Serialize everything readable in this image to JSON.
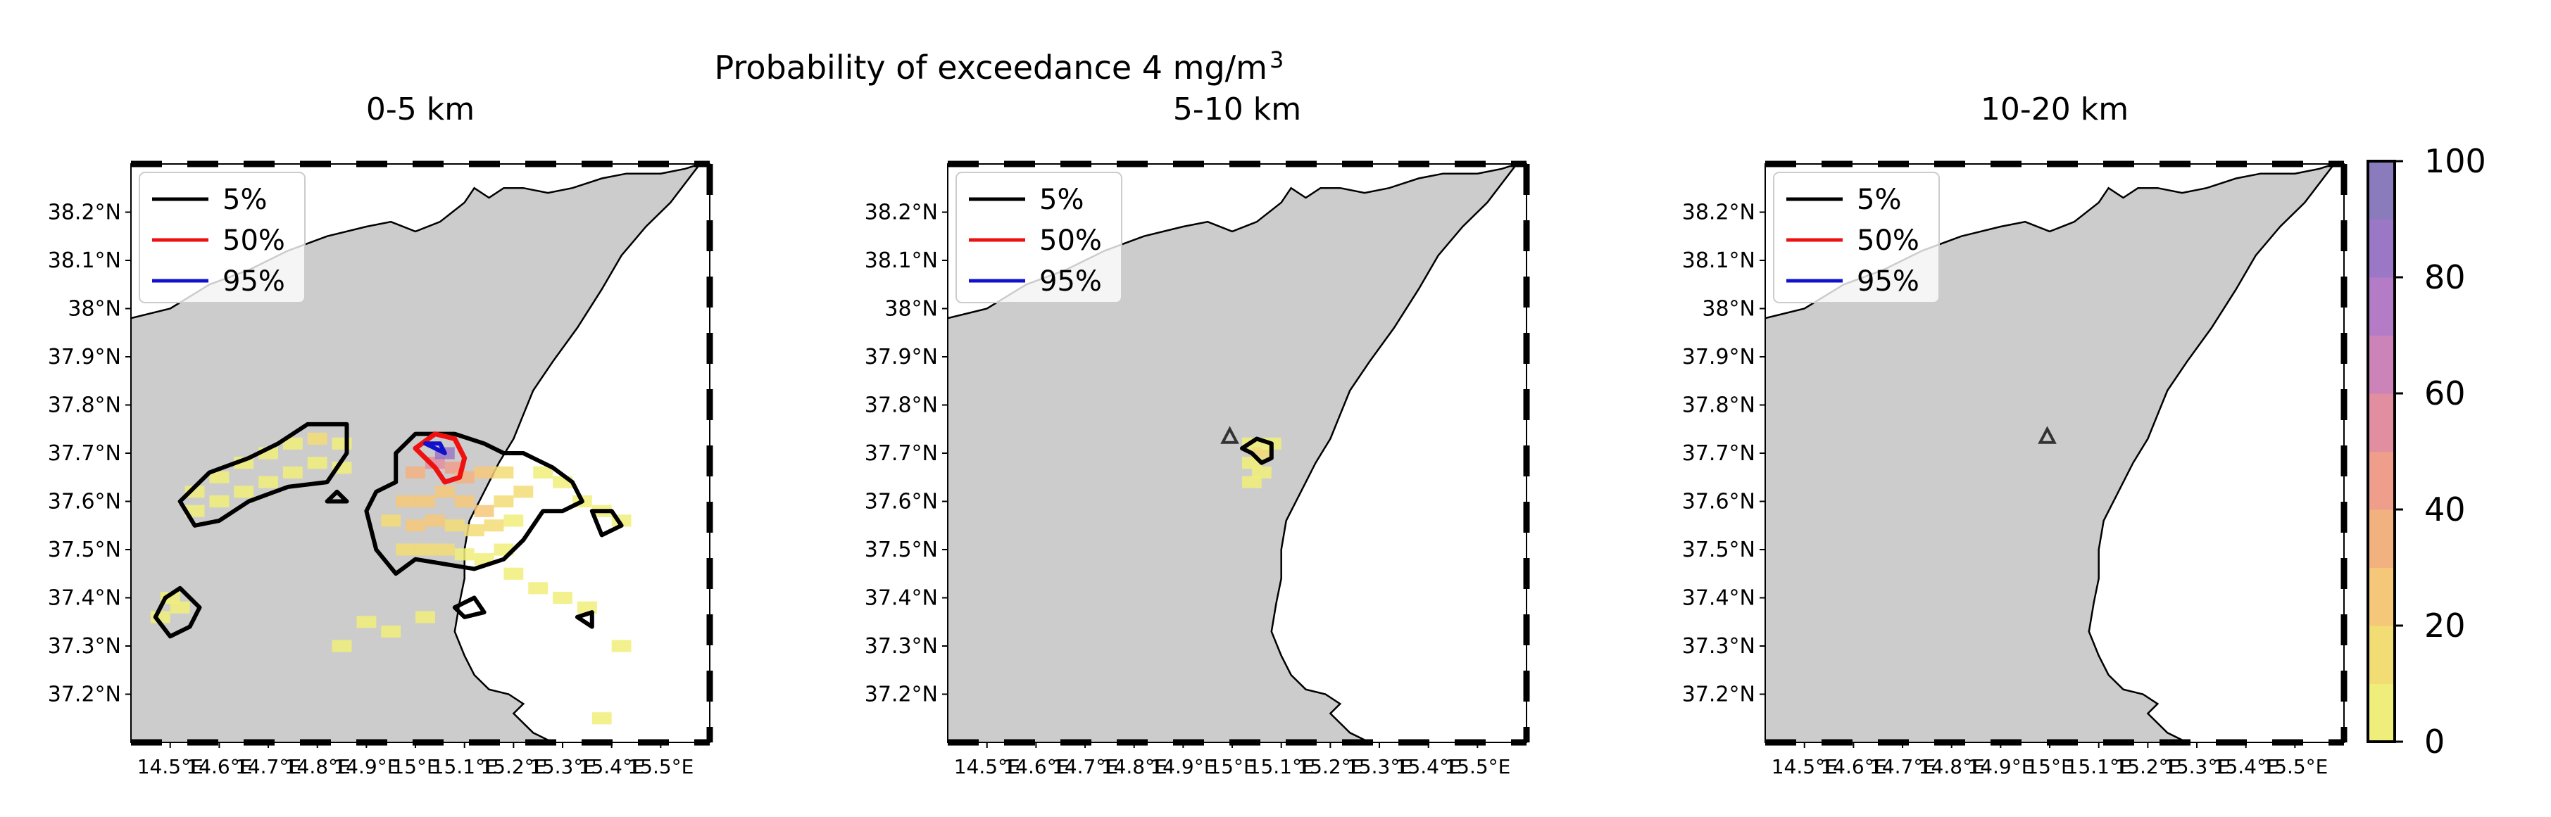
{
  "figure": {
    "title_main": "Probability of exceedance 4 mg/m",
    "title_sup": "3",
    "colorbar": {
      "ticks": [
        "0",
        "20",
        "40",
        "60",
        "80",
        "100"
      ],
      "colors": [
        "#f0ee7a",
        "#f2dc74",
        "#f4c878",
        "#f2b280",
        "#ee9e8a",
        "#e08ea0",
        "#cc84b8",
        "#b47cc6",
        "#9a78c6",
        "#8a7cbc"
      ],
      "range": [
        0,
        100
      ]
    },
    "land_color": "#cccccc",
    "contour_colors": {
      "5%": "#000000",
      "50%": "#ee1111",
      "95%": "#1111cc"
    }
  },
  "chart_data": [
    {
      "type": "heatmap",
      "title": "0-5 km",
      "legend": {
        "placement": "upper-left",
        "entries": [
          "5%",
          "50%",
          "95%"
        ]
      },
      "xticks": [
        "14.5°E",
        "14.6°E",
        "14.7°E",
        "14.8°E",
        "14.9°E",
        "15°E",
        "15.1°E",
        "15.2°E",
        "15.3°E",
        "15.4°E",
        "15.5°E"
      ],
      "yticks": [
        "38.2°N",
        "38.1°N",
        "38°N",
        "37.9°N",
        "37.8°N",
        "37.7°N",
        "37.6°N",
        "37.5°N",
        "37.4°N",
        "37.3°N",
        "37.2°N"
      ],
      "xlim": [
        14.42,
        15.6
      ],
      "ylim": [
        37.1,
        38.3
      ],
      "vent": null,
      "probability_cells": [
        [
          14.55,
          37.62,
          8
        ],
        [
          14.6,
          37.65,
          6
        ],
        [
          14.65,
          37.68,
          6
        ],
        [
          14.7,
          37.7,
          7
        ],
        [
          14.75,
          37.72,
          8
        ],
        [
          14.8,
          37.73,
          10
        ],
        [
          14.85,
          37.72,
          8
        ],
        [
          14.55,
          37.58,
          5
        ],
        [
          14.6,
          37.6,
          6
        ],
        [
          14.65,
          37.62,
          5
        ],
        [
          14.7,
          37.64,
          5
        ],
        [
          14.75,
          37.66,
          6
        ],
        [
          14.8,
          37.68,
          8
        ],
        [
          14.85,
          37.67,
          6
        ],
        [
          14.5,
          37.4,
          5
        ],
        [
          14.52,
          37.38,
          5
        ],
        [
          14.48,
          37.36,
          4
        ],
        [
          14.98,
          37.6,
          22
        ],
        [
          15.02,
          37.6,
          28
        ],
        [
          15.06,
          37.62,
          26
        ],
        [
          15.1,
          37.6,
          24
        ],
        [
          15.14,
          37.58,
          20
        ],
        [
          15.18,
          37.6,
          16
        ],
        [
          15.22,
          37.62,
          12
        ],
        [
          14.95,
          37.56,
          14
        ],
        [
          15.0,
          37.55,
          20
        ],
        [
          15.04,
          37.56,
          22
        ],
        [
          15.08,
          37.55,
          18
        ],
        [
          15.12,
          37.54,
          14
        ],
        [
          15.16,
          37.55,
          10
        ],
        [
          15.2,
          37.56,
          8
        ],
        [
          14.98,
          37.5,
          12
        ],
        [
          15.02,
          37.5,
          10
        ],
        [
          15.06,
          37.5,
          12
        ],
        [
          15.1,
          37.49,
          9
        ],
        [
          15.14,
          37.48,
          7
        ],
        [
          15.18,
          37.5,
          6
        ],
        [
          15.0,
          37.66,
          30
        ],
        [
          15.04,
          37.68,
          55
        ],
        [
          15.06,
          37.7,
          80
        ],
        [
          15.08,
          37.67,
          45
        ],
        [
          15.1,
          37.65,
          30
        ],
        [
          15.14,
          37.66,
          22
        ],
        [
          15.18,
          37.66,
          14
        ],
        [
          15.26,
          37.66,
          7
        ],
        [
          15.3,
          37.64,
          6
        ],
        [
          15.34,
          37.6,
          5
        ],
        [
          15.38,
          37.58,
          4
        ],
        [
          15.42,
          37.56,
          4
        ],
        [
          15.2,
          37.45,
          5
        ],
        [
          15.25,
          37.42,
          4
        ],
        [
          15.3,
          37.4,
          3
        ],
        [
          15.35,
          37.38,
          3
        ],
        [
          14.9,
          37.35,
          4
        ],
        [
          14.95,
          37.33,
          4
        ],
        [
          15.02,
          37.36,
          3
        ],
        [
          14.85,
          37.3,
          3
        ],
        [
          15.42,
          37.3,
          2
        ],
        [
          15.38,
          37.15,
          2
        ]
      ]
    },
    {
      "type": "heatmap",
      "title": "5-10 km",
      "legend": {
        "placement": "upper-left",
        "entries": [
          "5%",
          "50%",
          "95%"
        ]
      },
      "xticks": [
        "14.5°E",
        "14.6°E",
        "14.7°E",
        "14.8°E",
        "14.9°E",
        "15°E",
        "15.1°E",
        "15.2°E",
        "15.3°E",
        "15.4°E",
        "15.5°E"
      ],
      "yticks": [
        "38.2°N",
        "38.1°N",
        "38°N",
        "37.9°N",
        "37.8°N",
        "37.7°N",
        "37.6°N",
        "37.5°N",
        "37.4°N",
        "37.3°N",
        "37.2°N"
      ],
      "xlim": [
        14.42,
        15.6
      ],
      "ylim": [
        37.1,
        38.3
      ],
      "vent": [
        14.995,
        37.734
      ],
      "probability_cells": [
        [
          15.04,
          37.72,
          8
        ],
        [
          15.06,
          37.7,
          10
        ],
        [
          15.04,
          37.68,
          6
        ],
        [
          15.06,
          37.66,
          5
        ],
        [
          15.04,
          37.64,
          4
        ],
        [
          15.08,
          37.72,
          5
        ]
      ]
    },
    {
      "type": "heatmap",
      "title": "10-20 km",
      "legend": {
        "placement": "upper-left",
        "entries": [
          "5%",
          "50%",
          "95%"
        ]
      },
      "xticks": [
        "14.5°E",
        "14.6°E",
        "14.7°E",
        "14.8°E",
        "14.9°E",
        "15°E",
        "15.1°E",
        "15.2°E",
        "15.3°E",
        "15.4°E",
        "15.5°E"
      ],
      "yticks": [
        "38.2°N",
        "38.1°N",
        "38°N",
        "37.9°N",
        "37.8°N",
        "37.7°N",
        "37.6°N",
        "37.5°N",
        "37.4°N",
        "37.3°N",
        "37.2°N"
      ],
      "xlim": [
        14.42,
        15.6
      ],
      "ylim": [
        37.1,
        38.3
      ],
      "vent": [
        14.995,
        37.734
      ],
      "probability_cells": []
    }
  ]
}
